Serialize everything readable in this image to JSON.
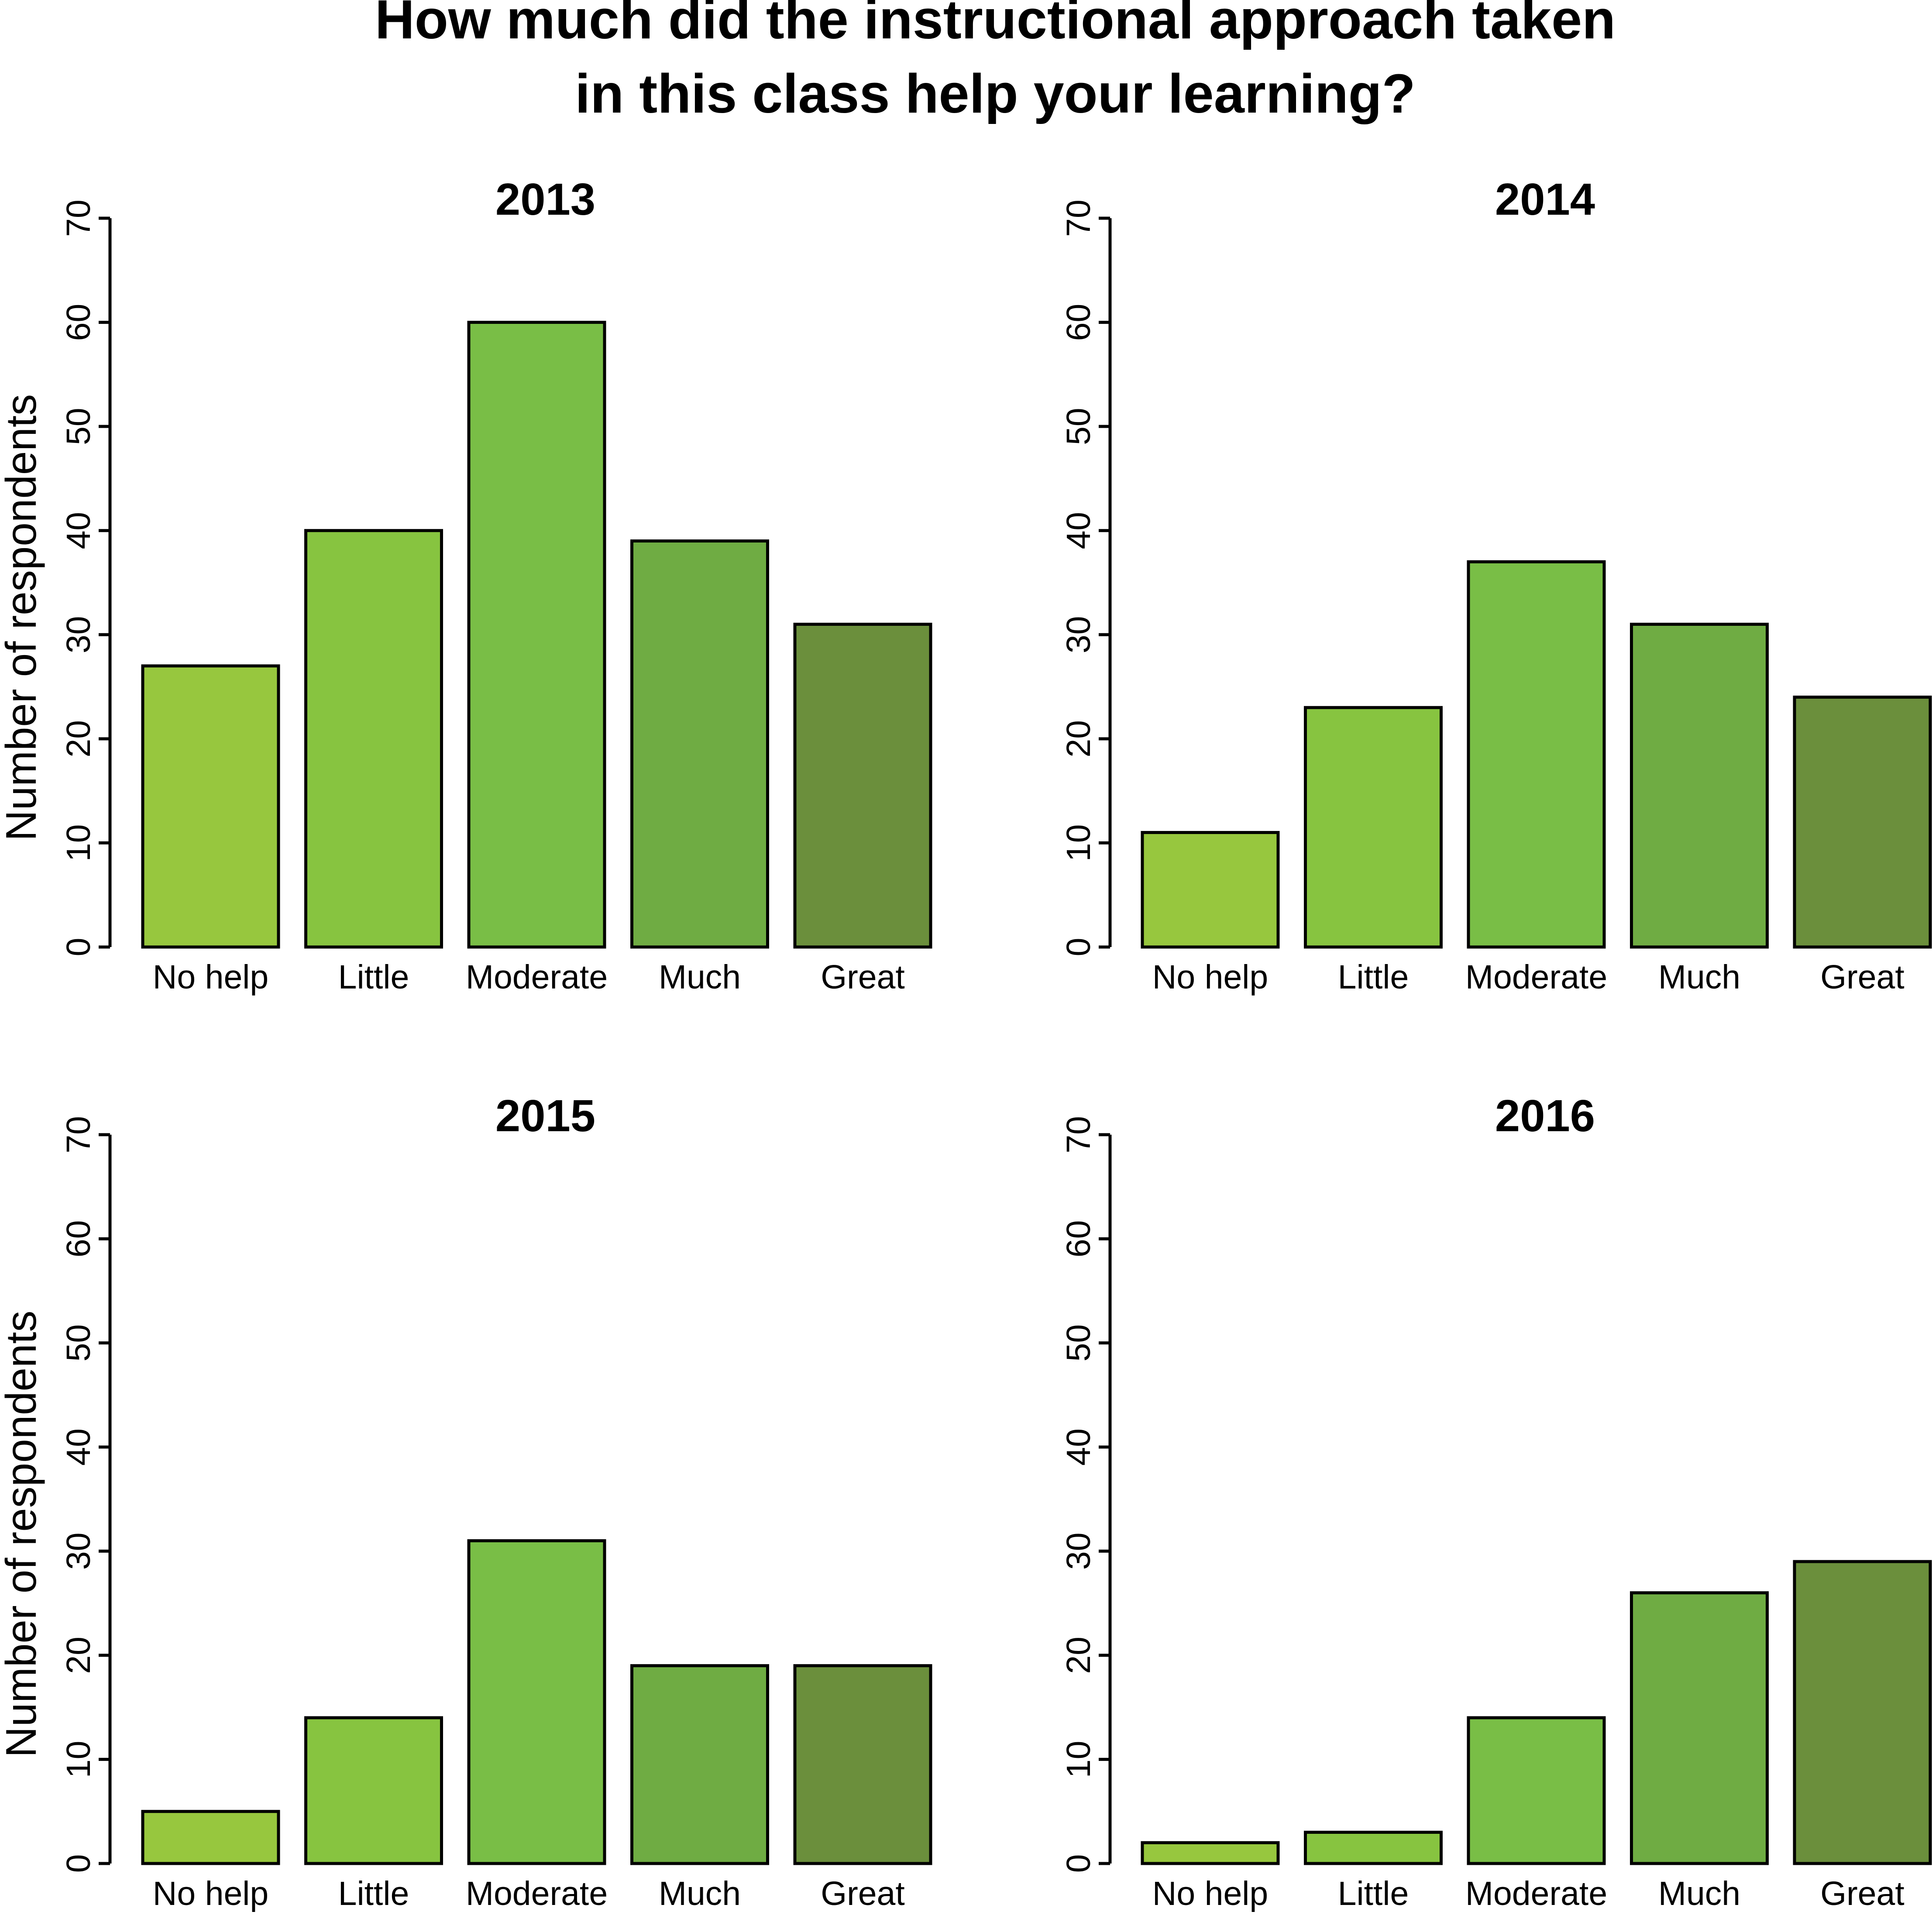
{
  "title_lines": [
    "How much did the instructional approach taken",
    "in this class help your learning?"
  ],
  "chart_data": [
    {
      "type": "bar",
      "title": "2013",
      "categories": [
        "No help",
        "Little",
        "Moderate",
        "Much",
        "Great"
      ],
      "values": [
        27,
        40,
        60,
        39,
        31
      ],
      "ylabel": "Number of respondents",
      "ylim": [
        0,
        70
      ],
      "yticks": [
        "0",
        "10",
        "20",
        "30",
        "40",
        "50",
        "60",
        "70"
      ],
      "grid": false
    },
    {
      "type": "bar",
      "title": "2014",
      "categories": [
        "No help",
        "Little",
        "Moderate",
        "Much",
        "Great"
      ],
      "values": [
        11,
        23,
        37,
        31,
        24
      ],
      "ylabel": "",
      "ylim": [
        0,
        70
      ],
      "yticks": [
        "0",
        "10",
        "20",
        "30",
        "40",
        "50",
        "60",
        "70"
      ],
      "grid": false
    },
    {
      "type": "bar",
      "title": "2015",
      "categories": [
        "No help",
        "Little",
        "Moderate",
        "Much",
        "Great"
      ],
      "values": [
        5,
        14,
        31,
        19,
        19
      ],
      "ylabel": "Number of respondents",
      "ylim": [
        0,
        70
      ],
      "yticks": [
        "0",
        "10",
        "20",
        "30",
        "40",
        "50",
        "60",
        "70"
      ],
      "grid": false
    },
    {
      "type": "bar",
      "title": "2016",
      "categories": [
        "No help",
        "Little",
        "Moderate",
        "Much",
        "Great"
      ],
      "values": [
        2,
        3,
        14,
        26,
        29
      ],
      "ylabel": "",
      "ylim": [
        0,
        70
      ],
      "yticks": [
        "0",
        "10",
        "20",
        "30",
        "40",
        "50",
        "60",
        "70"
      ],
      "grid": false
    }
  ],
  "bar_colors": [
    "#97c73e",
    "#87c440",
    "#79be46",
    "#6fac43",
    "#6b8f3c"
  ]
}
